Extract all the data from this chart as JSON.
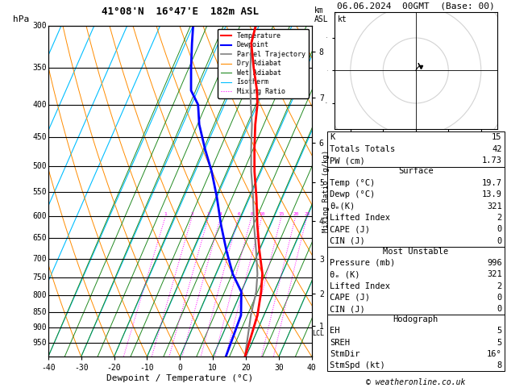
{
  "title_left": "41°08'N  16°47'E  182m ASL",
  "title_right": "06.06.2024  00GMT  (Base: 00)",
  "xlabel": "Dewpoint / Temperature (°C)",
  "pressure_ticks": [
    300,
    350,
    400,
    450,
    500,
    550,
    600,
    650,
    700,
    750,
    800,
    850,
    900,
    950
  ],
  "skew_factor": 0.55,
  "isotherm_color": "#00bfff",
  "dry_adiabat_color": "#ff8c00",
  "wet_adiabat_color": "#228b22",
  "mixing_ratio_color": "#ff00ff",
  "mixing_ratio_values": [
    1,
    2,
    3,
    4,
    6,
    8,
    10,
    15,
    20,
    25
  ],
  "temp_profile_temps": [
    -21,
    -20,
    -16,
    -12,
    -10,
    -8,
    -5,
    -2,
    2,
    6,
    10,
    14,
    16,
    18,
    19.7
  ],
  "temp_profile_press": [
    300,
    320,
    350,
    380,
    400,
    430,
    470,
    510,
    560,
    620,
    680,
    740,
    790,
    860,
    1000
  ],
  "dewp_profile_temps": [
    -40,
    -38,
    -35,
    -32,
    -28,
    -25,
    -20,
    -15,
    -10,
    -5,
    0,
    5,
    10,
    13,
    13.9
  ],
  "dewp_profile_press": [
    300,
    320,
    350,
    380,
    400,
    430,
    470,
    510,
    560,
    620,
    680,
    740,
    790,
    860,
    1000
  ],
  "parcel_temps": [
    -21,
    -20,
    -17,
    -14,
    -12,
    -9,
    -6,
    -3,
    1,
    5,
    9,
    12.5,
    14.5,
    16,
    19.7
  ],
  "parcel_press": [
    300,
    320,
    350,
    380,
    400,
    430,
    470,
    510,
    560,
    620,
    680,
    740,
    790,
    860,
    1000
  ],
  "temp_color": "#ff0000",
  "dewp_color": "#0000ff",
  "parcel_color": "#808080",
  "background_color": "#ffffff",
  "km_ticks": [
    1,
    2,
    3,
    4,
    5,
    6,
    7,
    8
  ],
  "km_pressures": [
    895,
    795,
    700,
    610,
    530,
    460,
    390,
    330
  ],
  "lcl_pressure": 920,
  "stats": {
    "K": 15,
    "Totals_Totals": 42,
    "PW_cm": 1.73,
    "Surface_Temp": 19.7,
    "Surface_Dewp": 13.9,
    "Surface_theta_e": 321,
    "Lifted_Index": 2,
    "Surface_CAPE": 0,
    "Surface_CIN": 0,
    "MU_Pressure": 996,
    "MU_theta_e": 321,
    "MU_Lifted_Index": 2,
    "MU_CAPE": 0,
    "MU_CIN": 0,
    "EH": 5,
    "SREH": 5,
    "StmDir": "16°",
    "StmSpd": 8
  },
  "copyright": "© weatheronline.co.uk"
}
